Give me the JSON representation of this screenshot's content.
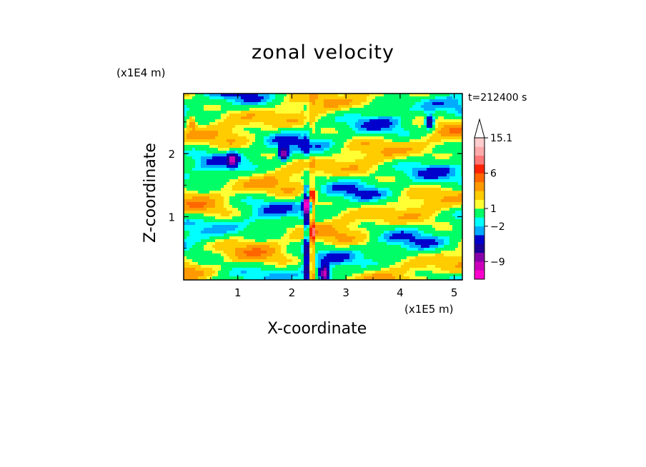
{
  "chart_data": {
    "type": "heatmap",
    "title": "zonal velocity",
    "xlabel": "X-coordinate",
    "ylabel": "Z-coordinate",
    "x_unit": "(x1E5 m)",
    "z_unit": "(x1E4 m)",
    "time_label": "t=212400 s",
    "xlim": [
      0,
      5.15
    ],
    "ylim": [
      0,
      2.95
    ],
    "x_ticks": [
      "1",
      "2",
      "3",
      "4",
      "5"
    ],
    "y_ticks": [
      "1",
      "2"
    ],
    "colorbar": {
      "levels": [
        -13,
        -11,
        -9,
        -7,
        -5,
        -3,
        -2,
        -1,
        1,
        2,
        3.5,
        5,
        6,
        8,
        10,
        12,
        15.1
      ],
      "tick_labels": [
        "15.1",
        "6",
        "1",
        "−2",
        "−9"
      ],
      "colors": [
        "#ff00cc",
        "#cc00bb",
        "#8800aa",
        "#1a0099",
        "#0000cc",
        "#00aaff",
        "#00ffff",
        "#00ff66",
        "#ffff33",
        "#ffcc00",
        "#ff9900",
        "#ff6600",
        "#ff2200",
        "#ff7777",
        "#ffaaaa",
        "#ffcccc"
      ]
    },
    "features": [
      {
        "kind": "blob",
        "x": 2.3,
        "z": 1.2,
        "value": -11
      },
      {
        "kind": "blob",
        "x": 2.6,
        "z": 0.1,
        "value": -11
      },
      {
        "kind": "blob",
        "x": 4.55,
        "z": 2.5,
        "value": -9
      },
      {
        "kind": "blob",
        "x": 1.85,
        "z": 2.0,
        "value": -9
      },
      {
        "kind": "blob",
        "x": 0.9,
        "z": 1.9,
        "value": -7
      },
      {
        "kind": "blob",
        "x": 2.35,
        "z": 1.3,
        "value": 6
      },
      {
        "kind": "blob",
        "x": 0.15,
        "z": 2.5,
        "value": 5
      }
    ]
  }
}
